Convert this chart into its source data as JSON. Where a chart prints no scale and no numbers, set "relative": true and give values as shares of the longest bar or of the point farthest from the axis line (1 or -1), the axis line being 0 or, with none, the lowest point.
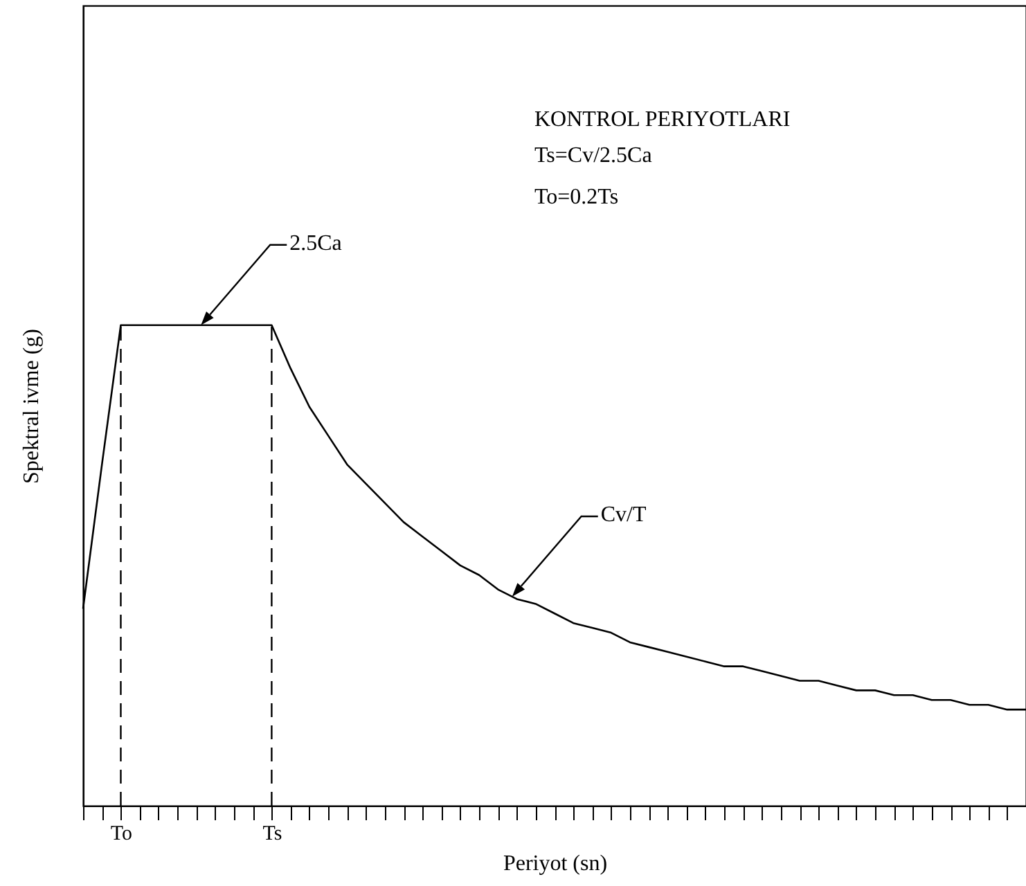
{
  "chart_data": {
    "type": "line",
    "relative": true,
    "xlabel": "Periyot (sn)",
    "ylabel": "Spektral ivme (g)",
    "annotations": [
      "KONTROL PERIYOTLARI",
      "Ts=Cv/2.5Ca",
      "To=0.2Ts",
      "2.5Ca",
      "Cv/T"
    ],
    "categories": [
      null,
      null,
      "To",
      null,
      null,
      null,
      null,
      null,
      null,
      null,
      "Ts",
      null,
      null,
      null,
      null,
      null,
      null,
      null,
      null,
      null,
      null,
      null,
      null,
      null,
      null,
      null,
      null,
      null,
      null,
      null,
      null,
      null,
      null,
      null,
      null,
      null,
      null,
      null,
      null,
      null,
      null,
      null,
      null,
      null,
      null,
      null,
      null,
      null,
      null,
      null,
      null
    ],
    "series": [
      {
        "color": "#000000",
        "values": [
          0.41,
          0.71,
          1,
          1,
          1,
          1,
          1,
          1,
          1,
          1,
          1,
          0.91,
          0.83,
          0.77,
          0.71,
          0.67,
          0.63,
          0.59,
          0.56,
          0.53,
          0.5,
          0.48,
          0.45,
          0.43,
          0.42,
          0.4,
          0.38,
          0.37,
          0.36,
          0.34,
          0.33,
          0.32,
          0.31,
          0.3,
          0.29,
          0.29,
          0.28,
          0.27,
          0.26,
          0.26,
          0.25,
          0.24,
          0.24,
          0.23,
          0.23,
          0.22,
          0.22,
          0.21,
          0.21,
          0.2,
          0.2
        ]
      }
    ],
    "ref_lines": [
      {
        "axis": "x",
        "value": "To",
        "line_style": "dashed"
      },
      {
        "axis": "x",
        "value": "Ts",
        "line_style": "dashed"
      }
    ],
    "grid": false,
    "marker": "none",
    "line_style": "solid"
  }
}
